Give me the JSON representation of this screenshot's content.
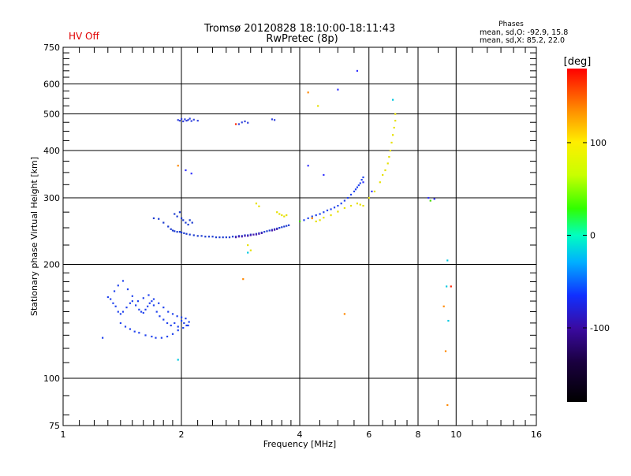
{
  "header": {
    "title_line1": "Tromsø 20120828 18:10:00-18:11:43",
    "title_line2": "RwPretec (8p)",
    "status": "HV Off",
    "status_color": "#e00000",
    "stats_title": "Phases",
    "stats_o": "mean, sd,O: -92.9, 15.8",
    "stats_x": "mean, sd,X:  85.2, 22.0"
  },
  "chart_data": {
    "type": "scatter",
    "xlabel": "Frequency [MHz]",
    "ylabel": "Stationary phase Virtual Height [km]",
    "x_scale": "log2",
    "y_scale": "log",
    "xlim": [
      1,
      16
    ],
    "ylim": [
      75,
      750
    ],
    "x_ticks": [
      1,
      2,
      4,
      6,
      8,
      10,
      16
    ],
    "x_tick_labels": [
      "1",
      "2",
      "4",
      "6",
      "8",
      "10",
      "16"
    ],
    "y_ticks": [
      75,
      100,
      200,
      300,
      400,
      500,
      600,
      750
    ],
    "y_tick_labels": [
      "75",
      "100",
      "200",
      "300",
      "400",
      "500",
      "600",
      "750"
    ],
    "grid": true,
    "colorbar": {
      "label": "[deg]",
      "range": [
        -180,
        180
      ],
      "ticks": [
        100,
        0,
        -100
      ],
      "tick_labels": [
        "100",
        "0",
        "-100"
      ]
    },
    "series": [
      {
        "color": "#2244ee",
        "x": [
          1.3,
          1.32,
          1.34,
          1.36,
          1.38,
          1.4,
          1.42,
          1.45,
          1.48,
          1.5,
          1.53,
          1.56,
          1.58,
          1.6,
          1.62,
          1.64,
          1.66,
          1.68,
          1.7,
          1.73,
          1.76,
          1.8,
          1.84,
          1.88,
          1.92,
          1.96,
          2.0,
          2.03,
          2.06,
          2.09,
          1.35,
          1.38,
          1.42,
          1.46,
          1.5,
          1.55,
          1.6,
          1.65,
          1.7,
          1.75,
          1.8,
          1.85,
          1.9,
          1.95,
          2.0,
          2.05,
          1.4,
          1.44,
          1.48,
          1.52,
          1.56,
          1.62,
          1.68,
          1.72,
          1.78,
          1.84,
          1.9,
          1.96,
          2.02,
          2.08,
          1.26
        ],
        "y": [
          164,
          162,
          158,
          155,
          150,
          148,
          150,
          154,
          158,
          160,
          156,
          152,
          150,
          149,
          152,
          155,
          158,
          160,
          156,
          150,
          146,
          143,
          140,
          138,
          140,
          137,
          142,
          140,
          138,
          141,
          170,
          176,
          181,
          172,
          165,
          160,
          163,
          166,
          162,
          158,
          154,
          150,
          148,
          146,
          145,
          144,
          140,
          137,
          135,
          133,
          132,
          130,
          129,
          128,
          128,
          129,
          131,
          134,
          136,
          138,
          128
        ]
      },
      {
        "color": "#1a3ad0",
        "x": [
          1.7,
          1.75,
          1.8,
          1.85,
          1.88,
          1.9,
          1.92,
          1.95,
          1.98,
          2.0,
          2.03,
          2.06,
          2.1,
          2.15,
          2.2,
          2.25,
          2.3,
          2.35,
          2.4,
          2.45,
          2.5,
          2.55,
          2.6,
          2.65,
          2.7,
          2.75,
          2.8,
          2.85,
          2.9,
          2.95,
          3.0,
          3.05,
          3.1,
          3.15,
          3.2,
          3.25,
          3.3,
          3.35,
          3.4,
          3.45,
          3.5,
          3.55,
          3.6,
          3.65,
          3.7,
          3.75,
          1.92,
          1.95,
          1.98,
          2.0,
          2.02,
          2.05,
          2.08,
          2.1,
          2.13
        ],
        "y": [
          265,
          264,
          258,
          252,
          248,
          246,
          245,
          244,
          244,
          243,
          242,
          241,
          240,
          239,
          238,
          238,
          237,
          237,
          237,
          236,
          236,
          236,
          236,
          236,
          237,
          237,
          238,
          238,
          239,
          239,
          240,
          240,
          241,
          242,
          243,
          244,
          245,
          246,
          247,
          248,
          249,
          250,
          251,
          252,
          253,
          254,
          272,
          268,
          275,
          265,
          262,
          258,
          255,
          262,
          258
        ]
      },
      {
        "color": "#4a1fb0",
        "x": [
          2.75,
          2.8,
          2.85,
          2.9,
          2.95,
          3.0,
          3.05,
          3.1,
          3.15,
          3.2,
          3.4,
          3.45,
          3.5
        ],
        "y": [
          236,
          237,
          237,
          238,
          238,
          239,
          240,
          240,
          241,
          242,
          246,
          247,
          248
        ]
      },
      {
        "color": "#2244ee",
        "x": [
          4.1,
          4.2,
          4.3,
          4.4,
          4.5,
          4.6,
          4.7,
          4.8,
          4.9,
          5.0,
          5.1,
          5.2,
          5.3,
          5.4,
          5.5,
          5.55,
          5.6,
          5.65,
          5.7,
          5.75,
          5.8
        ],
        "y": [
          262,
          265,
          268,
          270,
          272,
          275,
          278,
          280,
          283,
          286,
          290,
          295,
          300,
          306,
          312,
          316,
          320,
          324,
          328,
          335,
          340
        ]
      },
      {
        "color": "#3344dd",
        "x": [
          1.96,
          1.98,
          2.0,
          2.02,
          2.04,
          2.06,
          2.08,
          2.1,
          2.12,
          2.15,
          2.2,
          2.8,
          2.85,
          2.9,
          2.95,
          3.4,
          3.45
        ],
        "y": [
          482,
          480,
          485,
          478,
          484,
          480,
          482,
          486,
          479,
          483,
          480,
          470,
          475,
          478,
          474,
          484,
          482
        ]
      },
      {
        "color": "#e6e000",
        "x": [
          3.1,
          3.15,
          3.5,
          3.55,
          3.6,
          3.65,
          3.7,
          4.3,
          4.4,
          4.5,
          4.6,
          4.8,
          5.0,
          5.2,
          5.4,
          5.6,
          5.7,
          5.8,
          6.0,
          6.2,
          6.4,
          6.5,
          6.6,
          6.7,
          6.75,
          6.8,
          6.85,
          6.9,
          6.95,
          7.0,
          4.45,
          7.0,
          2.95,
          3.0
        ],
        "y": [
          290,
          285,
          275,
          272,
          270,
          268,
          270,
          265,
          260,
          262,
          266,
          270,
          276,
          282,
          286,
          290,
          288,
          286,
          300,
          312,
          330,
          345,
          355,
          370,
          385,
          400,
          420,
          440,
          460,
          480,
          525,
          500,
          225,
          218
        ]
      },
      {
        "color": "#ff8800",
        "x": [
          1.96,
          2.87,
          4.2,
          5.2,
          9.3,
          9.4,
          9.5,
          4.3
        ],
        "y": [
          365,
          183,
          570,
          148,
          155,
          118,
          85,
          265
        ]
      },
      {
        "color": "#00c8e0",
        "x": [
          9.5,
          9.45,
          9.55,
          2.95,
          1.96,
          6.9
        ],
        "y": [
          205,
          175,
          142,
          215,
          112,
          545
        ]
      },
      {
        "color": "#3333ff",
        "x": [
          2.05,
          2.12,
          4.2,
          4.6,
          5.0,
          5.6,
          8.5,
          8.8,
          5.8,
          6.1
        ],
        "y": [
          355,
          348,
          365,
          345,
          580,
          650,
          300,
          298,
          330,
          312
        ]
      },
      {
        "color": "#ff2200",
        "x": [
          2.75,
          9.7
        ],
        "y": [
          470,
          175
        ]
      },
      {
        "color": "#44dd00",
        "x": [
          8.6,
          4.0
        ],
        "y": [
          295,
          260
        ]
      }
    ]
  }
}
